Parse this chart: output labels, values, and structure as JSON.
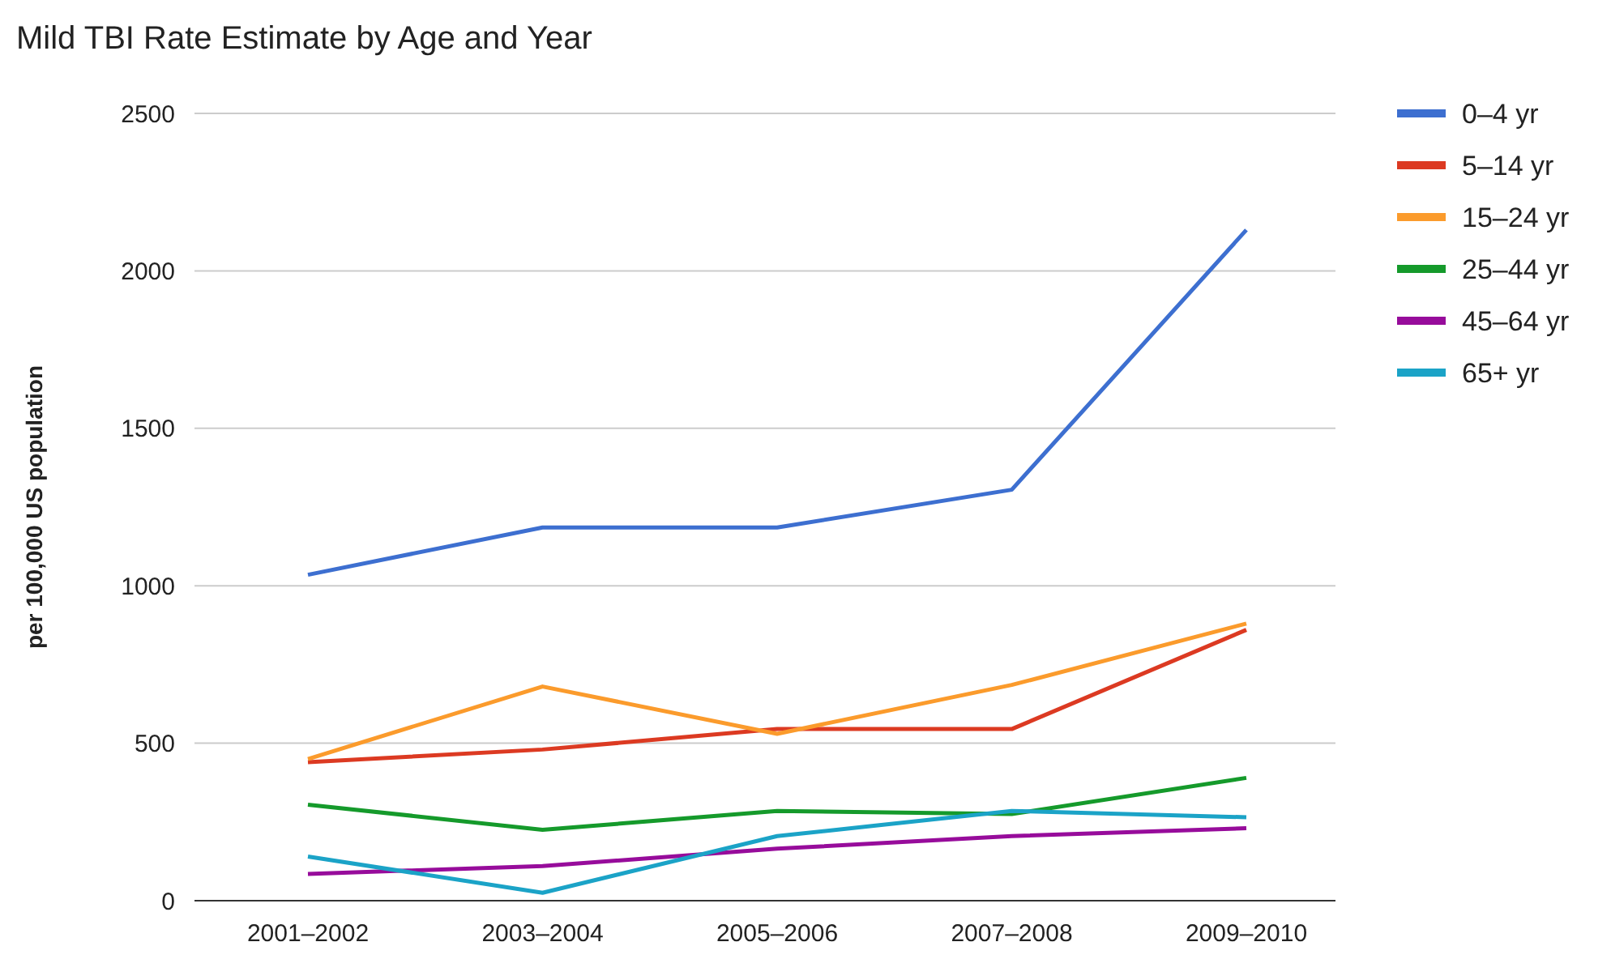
{
  "chart_data": {
    "type": "line",
    "title": "Mild TBI Rate Estimate by Age and Year",
    "ylabel": "per 100,000 US population",
    "categories": [
      "2001–2002",
      "2003–2004",
      "2005–2006",
      "2007–2008",
      "2009–2010"
    ],
    "series": [
      {
        "name": "0–4 yr",
        "color": "#3d6fd0",
        "values": [
          1035,
          1185,
          1185,
          1305,
          2130
        ]
      },
      {
        "name": "5–14 yr",
        "color": "#dc3a22",
        "values": [
          440,
          480,
          545,
          545,
          860
        ]
      },
      {
        "name": "15–24 yr",
        "color": "#fb9b2c",
        "values": [
          450,
          680,
          530,
          685,
          880
        ]
      },
      {
        "name": "25–44 yr",
        "color": "#159a2b",
        "values": [
          305,
          225,
          285,
          275,
          390
        ]
      },
      {
        "name": "45–64 yr",
        "color": "#970c9b",
        "values": [
          85,
          110,
          165,
          205,
          230
        ]
      },
      {
        "name": "65+ yr",
        "color": "#1ba3c7",
        "values": [
          140,
          25,
          205,
          285,
          265
        ]
      }
    ],
    "ylim": [
      0,
      2500
    ],
    "yticks": [
      0,
      500,
      1000,
      1500,
      2000,
      2500
    ],
    "grid": "y",
    "legend": "right",
    "marker": "none",
    "line_style": "solid"
  }
}
